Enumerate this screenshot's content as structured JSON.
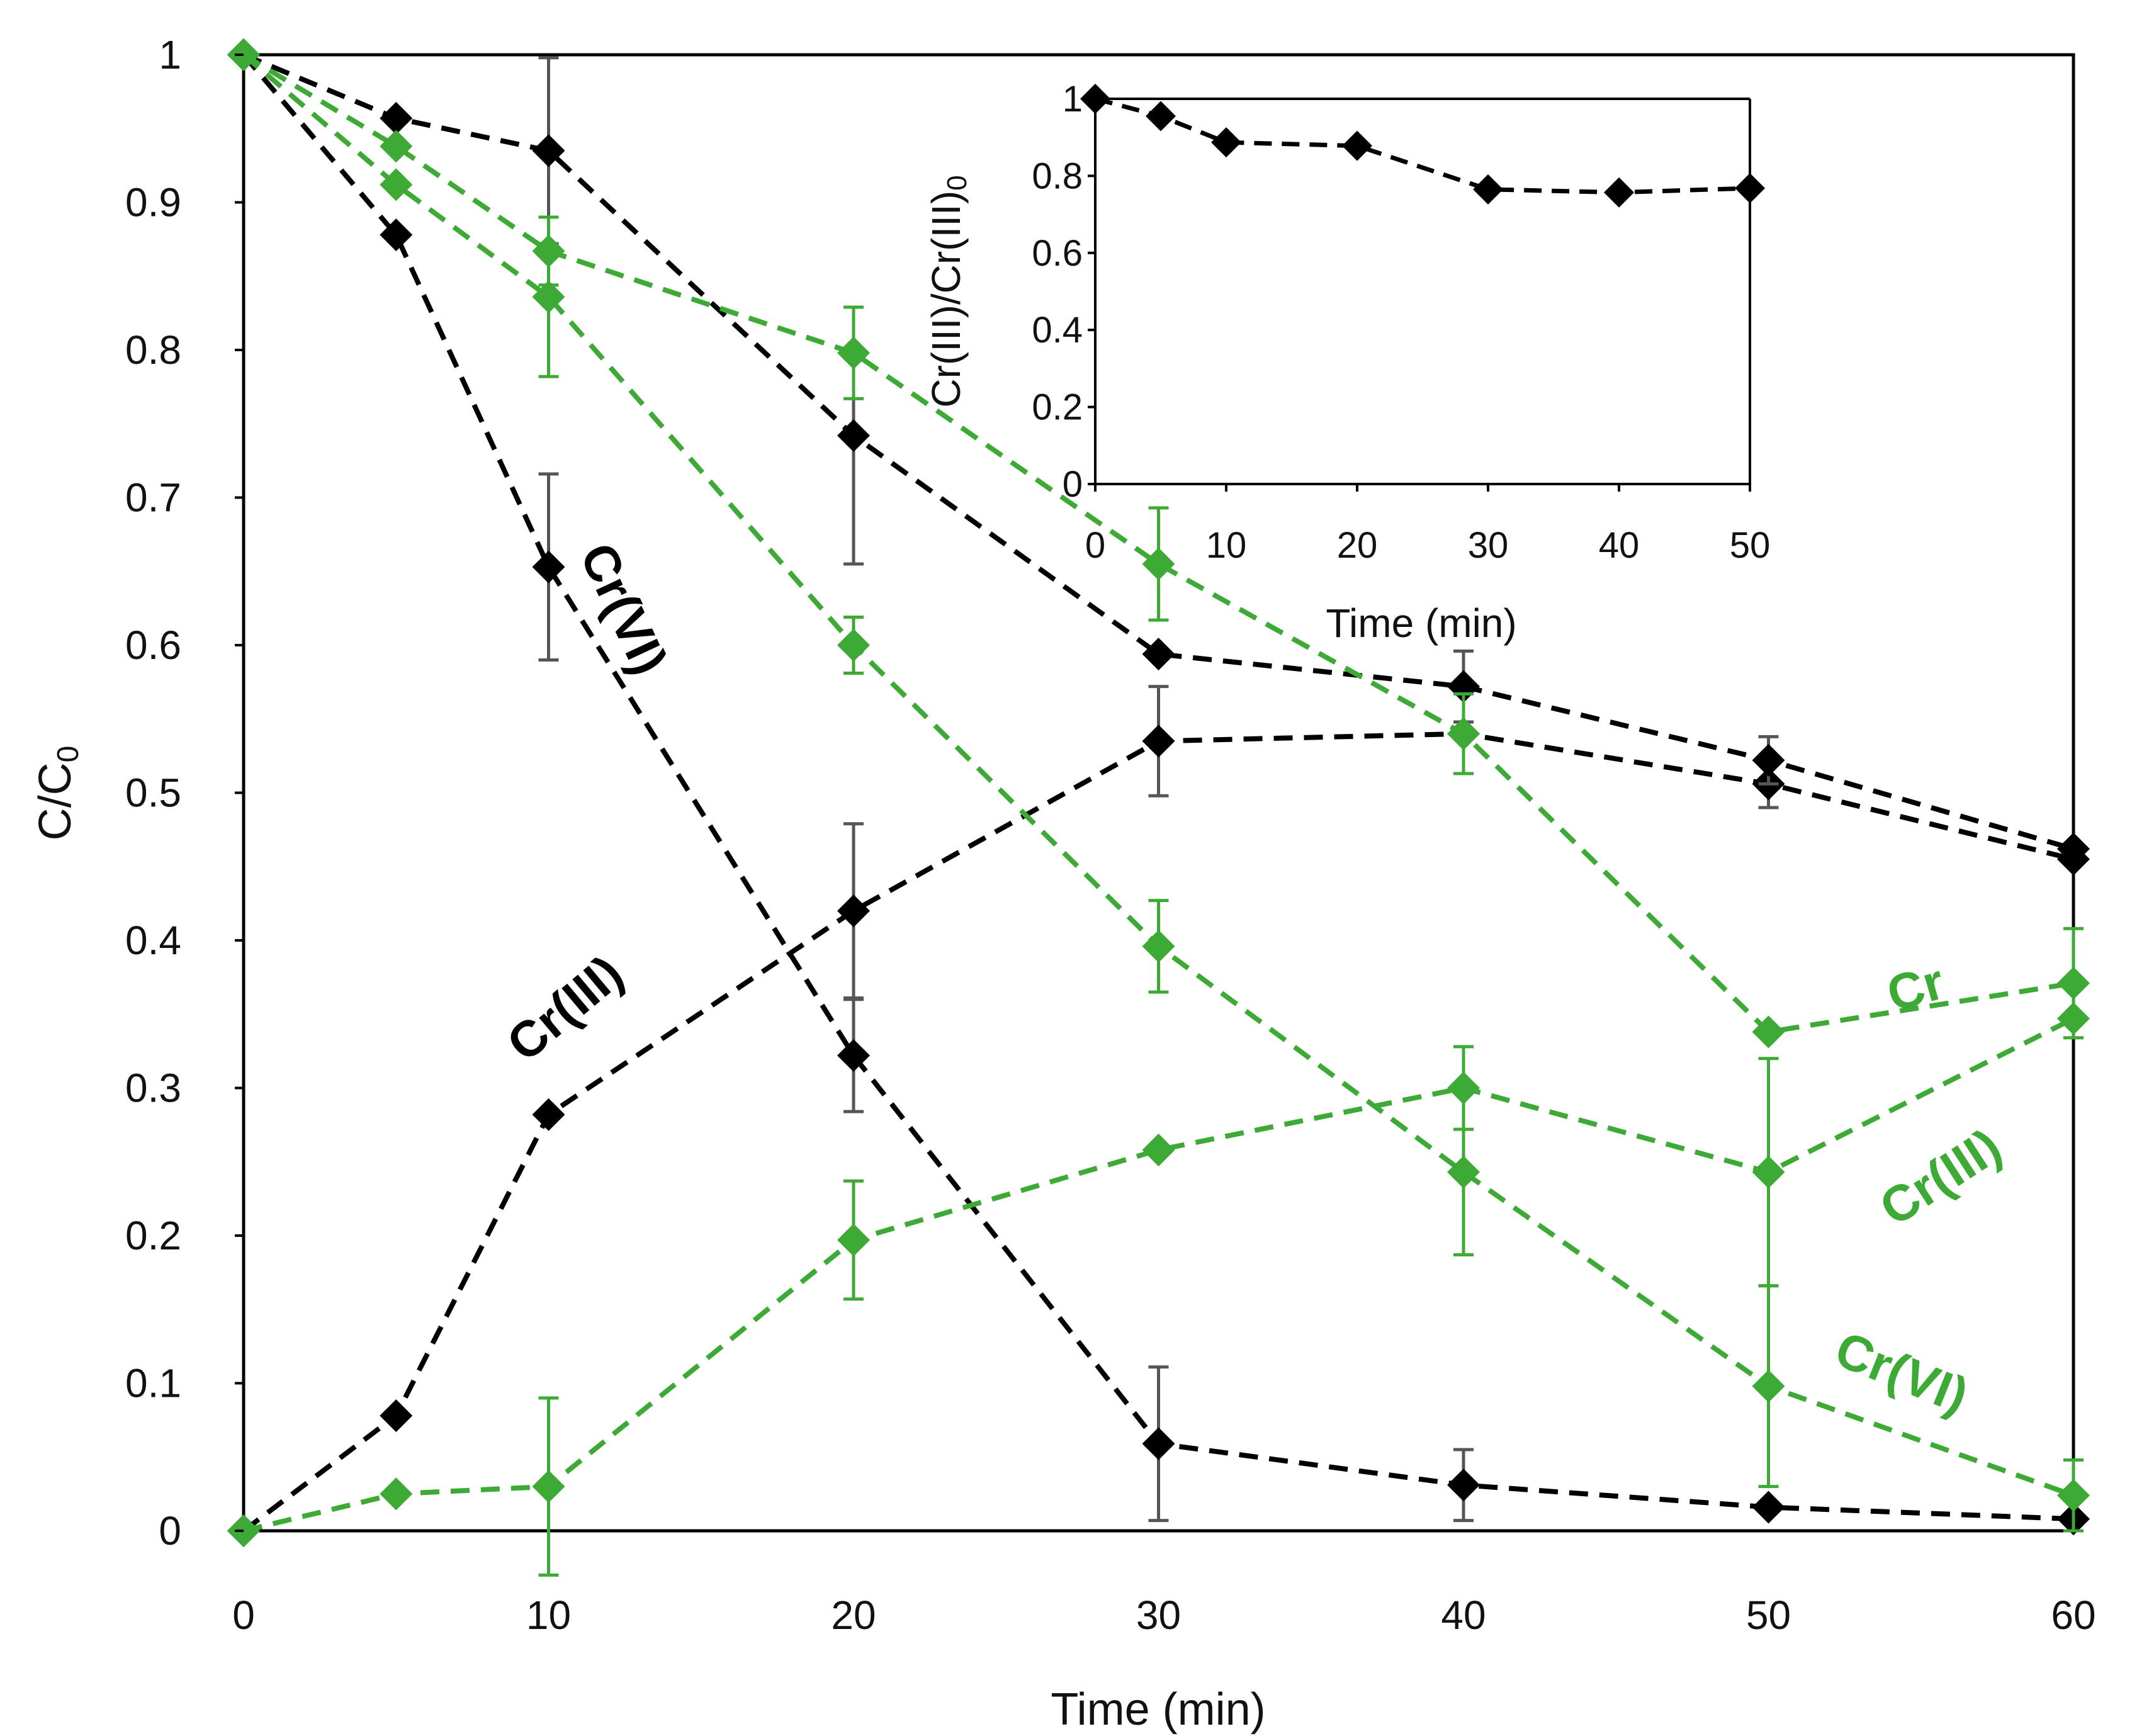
{
  "chart_data": [
    {
      "type": "scatter",
      "role": "main",
      "title": "",
      "xlabel": "Time (min)",
      "ylabel_main": "C/C",
      "ylabel_sub": "0",
      "xlim": [
        0,
        60
      ],
      "ylim": [
        0,
        1
      ],
      "x_ticks": [
        "0",
        "10",
        "20",
        "30",
        "40",
        "50",
        "60"
      ],
      "y_ticks": [
        "0",
        "0.1",
        "0.2",
        "0.3",
        "0.4",
        "0.5",
        "0.6",
        "0.7",
        "0.8",
        "0.9",
        "1"
      ],
      "grid": false,
      "legend": "none",
      "series": [
        {
          "name": "Cr(VI) black",
          "color": "#000000",
          "x": [
            0,
            5,
            10,
            20,
            30,
            40,
            50,
            60
          ],
          "values": [
            1,
            0.878,
            0.653,
            0.322,
            0.059,
            0.031,
            0.016,
            0.008
          ],
          "err": [
            0,
            0,
            0.063,
            0.038,
            0.052,
            0.024,
            0,
            0
          ]
        },
        {
          "name": "Cr(III) black",
          "color": "#000000",
          "x": [
            0,
            5,
            10,
            20,
            30,
            40,
            50,
            60
          ],
          "values": [
            0,
            0.078,
            0.282,
            0.42,
            0.535,
            0.54,
            0.506,
            0.455
          ],
          "err": [
            0,
            0,
            0,
            0.059,
            0.037,
            0,
            0.016,
            0
          ]
        },
        {
          "name": "Cr black",
          "color": "#000000",
          "x": [
            0,
            5,
            10,
            20,
            30,
            40,
            50,
            60
          ],
          "values": [
            1,
            0.957,
            0.935,
            0.742,
            0.594,
            0.572,
            0.522,
            0.462
          ],
          "err": [
            0,
            0,
            0.063,
            0.087,
            0,
            0.024,
            0.016,
            0
          ]
        },
        {
          "name": "Cr(VI) green",
          "color": "#3DAA35",
          "x": [
            0,
            5,
            10,
            20,
            30,
            40,
            50,
            60
          ],
          "values": [
            1,
            0.912,
            0.836,
            0.6,
            0.396,
            0.243,
            0.098,
            0.024
          ],
          "err": [
            0,
            0,
            0.054,
            0.019,
            0.031,
            0.056,
            0.068,
            0.024
          ]
        },
        {
          "name": "Cr(III) green",
          "color": "#3DAA35",
          "x": [
            0,
            5,
            10,
            20,
            30,
            40,
            50,
            60
          ],
          "values": [
            0,
            0.025,
            0.03,
            0.197,
            0.258,
            0.3,
            0.243,
            0.347
          ],
          "err": [
            0,
            0,
            0.06,
            0.04,
            0,
            0.028,
            0.077,
            0
          ]
        },
        {
          "name": "Cr green",
          "color": "#3DAA35",
          "x": [
            0,
            5,
            10,
            20,
            30,
            40,
            50,
            60
          ],
          "values": [
            1,
            0.938,
            0.867,
            0.798,
            0.655,
            0.54,
            0.338,
            0.371
          ],
          "err": [
            0,
            0,
            0.023,
            0.031,
            0.038,
            0.027,
            0,
            0.037
          ]
        }
      ],
      "annotations": [
        {
          "text": "Cr(VI)",
          "color": "#000000"
        },
        {
          "text": "Cr(III)",
          "color": "#000000"
        },
        {
          "text": "Cr",
          "color": "#3DAA35"
        },
        {
          "text": "Cr(III)",
          "color": "#3DAA35"
        },
        {
          "text": "Cr(VI)",
          "color": "#3DAA35"
        }
      ]
    },
    {
      "type": "scatter",
      "role": "inset",
      "title": "",
      "xlabel": "Time (min)",
      "ylabel_main": "Cr(III)/Cr(III)",
      "ylabel_sub": "0",
      "xlim": [
        0,
        50
      ],
      "ylim": [
        0,
        1
      ],
      "x_ticks": [
        "0",
        "10",
        "20",
        "30",
        "40",
        "50"
      ],
      "y_ticks": [
        "0",
        "0.2",
        "0.4",
        "0.6",
        "0.8",
        "1"
      ],
      "grid": false,
      "legend": "none",
      "series": [
        {
          "name": "Cr(III)/Cr(III)0",
          "color": "#000000",
          "x": [
            0,
            5,
            10,
            20,
            30,
            40,
            50
          ],
          "values": [
            1,
            0.955,
            0.887,
            0.878,
            0.765,
            0.757,
            0.768
          ]
        }
      ]
    }
  ]
}
